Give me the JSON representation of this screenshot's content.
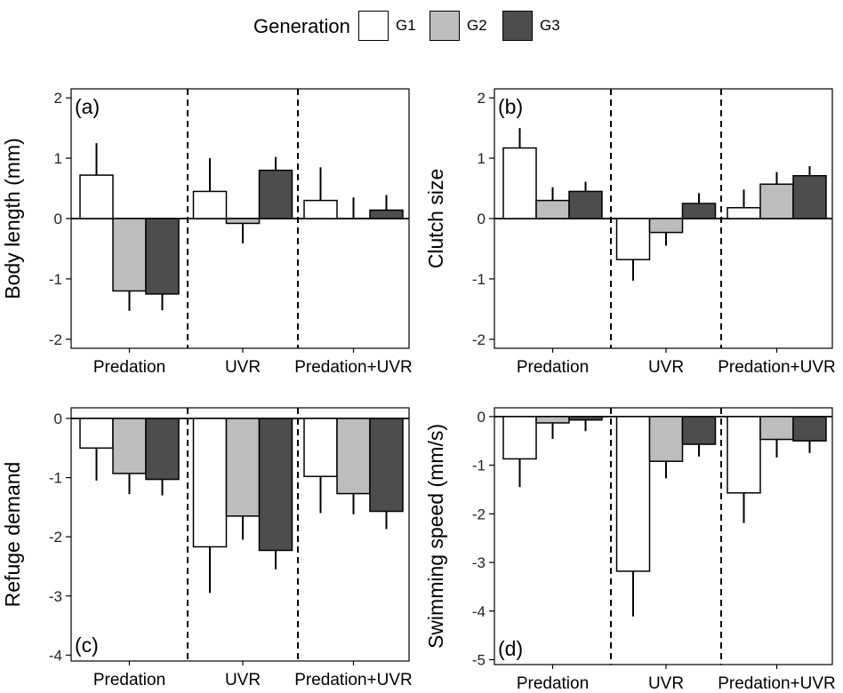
{
  "legend": {
    "title": "Generation",
    "entries": [
      {
        "label": "G1",
        "color": "#ffffff"
      },
      {
        "label": "G2",
        "color": "#bdbdbd"
      },
      {
        "label": "G3",
        "color": "#4d4d4d"
      }
    ]
  },
  "chart_data": [
    {
      "type": "bar",
      "panel": "(a)",
      "ylabel": "Body length (mm)",
      "ylim": [
        -2.15,
        2.15
      ],
      "yticks": [
        2,
        1,
        0,
        -1,
        -2
      ],
      "yticklabels": [
        "2",
        "1",
        "0",
        "-1",
        "-2"
      ],
      "categories": [
        "Predation",
        "UVR",
        "Predation+UVR"
      ],
      "series": [
        {
          "name": "G1",
          "values": [
            0.72,
            0.45,
            0.3
          ],
          "errors": [
            0.53,
            0.55,
            0.55
          ]
        },
        {
          "name": "G2",
          "values": [
            -1.2,
            -0.08,
            0.0
          ],
          "errors": [
            0.33,
            0.33,
            0.35
          ]
        },
        {
          "name": "G3",
          "values": [
            -1.25,
            0.8,
            0.14
          ],
          "errors": [
            0.27,
            0.22,
            0.25
          ]
        }
      ]
    },
    {
      "type": "bar",
      "panel": "(b)",
      "ylabel": "Clutch size",
      "ylim": [
        -2.15,
        2.15
      ],
      "yticks": [
        2,
        1,
        0,
        -1,
        -2
      ],
      "yticklabels": [
        "2",
        "1",
        "0",
        "-1",
        "-2"
      ],
      "categories": [
        "Predation",
        "UVR",
        "Predation+UVR"
      ],
      "series": [
        {
          "name": "G1",
          "values": [
            1.17,
            -0.68,
            0.18
          ],
          "errors": [
            0.33,
            0.35,
            0.3
          ]
        },
        {
          "name": "G2",
          "values": [
            0.3,
            -0.23,
            0.57
          ],
          "errors": [
            0.22,
            0.22,
            0.2
          ]
        },
        {
          "name": "G3",
          "values": [
            0.45,
            0.25,
            0.71
          ],
          "errors": [
            0.16,
            0.17,
            0.16
          ]
        }
      ]
    },
    {
      "type": "bar",
      "panel": "(c)",
      "ylabel": "Refuge demand",
      "ylim": [
        -4.1,
        0.18
      ],
      "yticks": [
        0,
        -1,
        -2,
        -3,
        -4
      ],
      "yticklabels": [
        "0",
        "-1",
        "-2",
        "-3",
        "-4"
      ],
      "categories": [
        "Predation",
        "UVR",
        "Predation+UVR"
      ],
      "series": [
        {
          "name": "G1",
          "values": [
            -0.5,
            -2.17,
            -0.98
          ],
          "errors": [
            0.55,
            0.78,
            0.62
          ]
        },
        {
          "name": "G2",
          "values": [
            -0.93,
            -1.65,
            -1.27
          ],
          "errors": [
            0.35,
            0.4,
            0.35
          ]
        },
        {
          "name": "G3",
          "values": [
            -1.03,
            -2.23,
            -1.57
          ],
          "errors": [
            0.27,
            0.32,
            0.3
          ]
        }
      ]
    },
    {
      "type": "bar",
      "panel": "(d)",
      "ylabel": "Swimming speed (mm/s)",
      "ylim": [
        -5.1,
        0.18
      ],
      "yticks": [
        0,
        -1,
        -2,
        -3,
        -4,
        -5
      ],
      "yticklabels": [
        "0",
        "-1",
        "-2",
        "-3",
        "-4",
        "-5"
      ],
      "categories": [
        "Predation",
        "UVR",
        "Predation+UVR"
      ],
      "series": [
        {
          "name": "G1",
          "values": [
            -0.87,
            -3.18,
            -1.57
          ],
          "errors": [
            0.58,
            0.93,
            0.62
          ]
        },
        {
          "name": "G2",
          "values": [
            -0.13,
            -0.92,
            -0.47
          ],
          "errors": [
            0.33,
            0.35,
            0.37
          ]
        },
        {
          "name": "G3",
          "values": [
            -0.07,
            -0.57,
            -0.5
          ],
          "errors": [
            0.23,
            0.25,
            0.25
          ]
        }
      ]
    }
  ]
}
